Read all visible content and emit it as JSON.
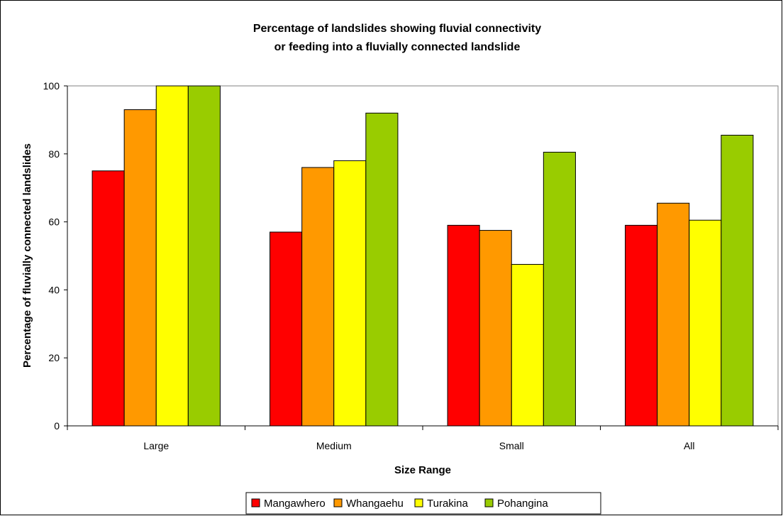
{
  "chart_data": {
    "type": "bar",
    "title_lines": [
      "Percentage of landslides showing fluvial connectivity",
      "or feeding into a fluvially connected landslide"
    ],
    "xlabel": "Size Range",
    "ylabel": "Percentage of fluvially connected landslides",
    "categories": [
      "Large",
      "Medium",
      "Small",
      "All"
    ],
    "ylim": [
      0,
      100
    ],
    "yticks": [
      0,
      20,
      40,
      60,
      80,
      100
    ],
    "grid": false,
    "legend_position": "bottom",
    "series": [
      {
        "name": "Mangawhero",
        "color": "#FF0000",
        "values": [
          75,
          57,
          59,
          59
        ]
      },
      {
        "name": "Whangaehu",
        "color": "#FF9900",
        "values": [
          93,
          76,
          57.5,
          65.5
        ]
      },
      {
        "name": "Turakina",
        "color": "#FFFF00",
        "values": [
          100,
          78,
          47.5,
          60.5
        ]
      },
      {
        "name": "Pohangina",
        "color": "#99CC00",
        "values": [
          100,
          92,
          80.5,
          85.5
        ]
      }
    ]
  }
}
